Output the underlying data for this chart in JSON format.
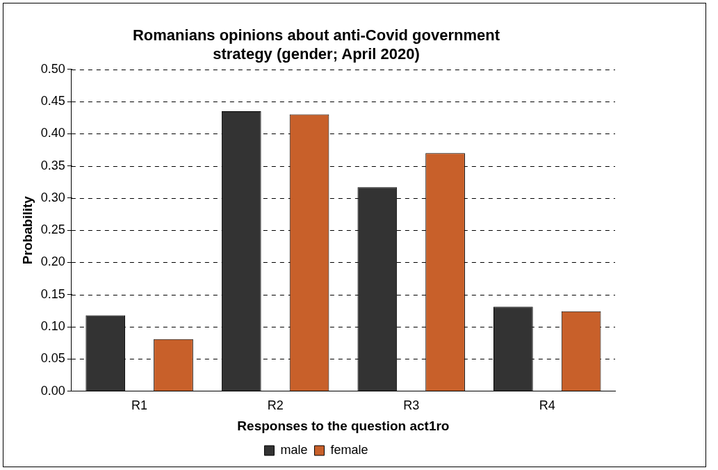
{
  "chart_data": {
    "type": "bar",
    "title": "Romanians opinions about anti-Covid government strategy (gender; April 2020)",
    "xlabel": "Responses to the question act1ro",
    "ylabel": "Probability",
    "categories": [
      "R1",
      "R2",
      "R3",
      "R4"
    ],
    "series": [
      {
        "name": "male",
        "color": "#333333",
        "values": [
          0.118,
          0.435,
          0.317,
          0.131
        ]
      },
      {
        "name": "female",
        "color": "#c8602a",
        "values": [
          0.081,
          0.43,
          0.37,
          0.124
        ]
      }
    ],
    "ylim": [
      0,
      0.5
    ],
    "yticks": [
      {
        "value": 0,
        "label": "0.00"
      },
      {
        "value": 0.05,
        "label": "0.05"
      },
      {
        "value": 0.1,
        "label": "0.10"
      },
      {
        "value": 0.15,
        "label": "0.15"
      },
      {
        "value": 0.2,
        "label": "0.20"
      },
      {
        "value": 0.25,
        "label": "0.25"
      },
      {
        "value": 0.3,
        "label": "0.30"
      },
      {
        "value": 0.35,
        "label": "0.35"
      },
      {
        "value": 0.4,
        "label": "0.40"
      },
      {
        "value": 0.45,
        "label": "0.45"
      },
      {
        "value": 0.5,
        "label": "0.50"
      }
    ],
    "grid": "y",
    "legend": "bottom"
  }
}
